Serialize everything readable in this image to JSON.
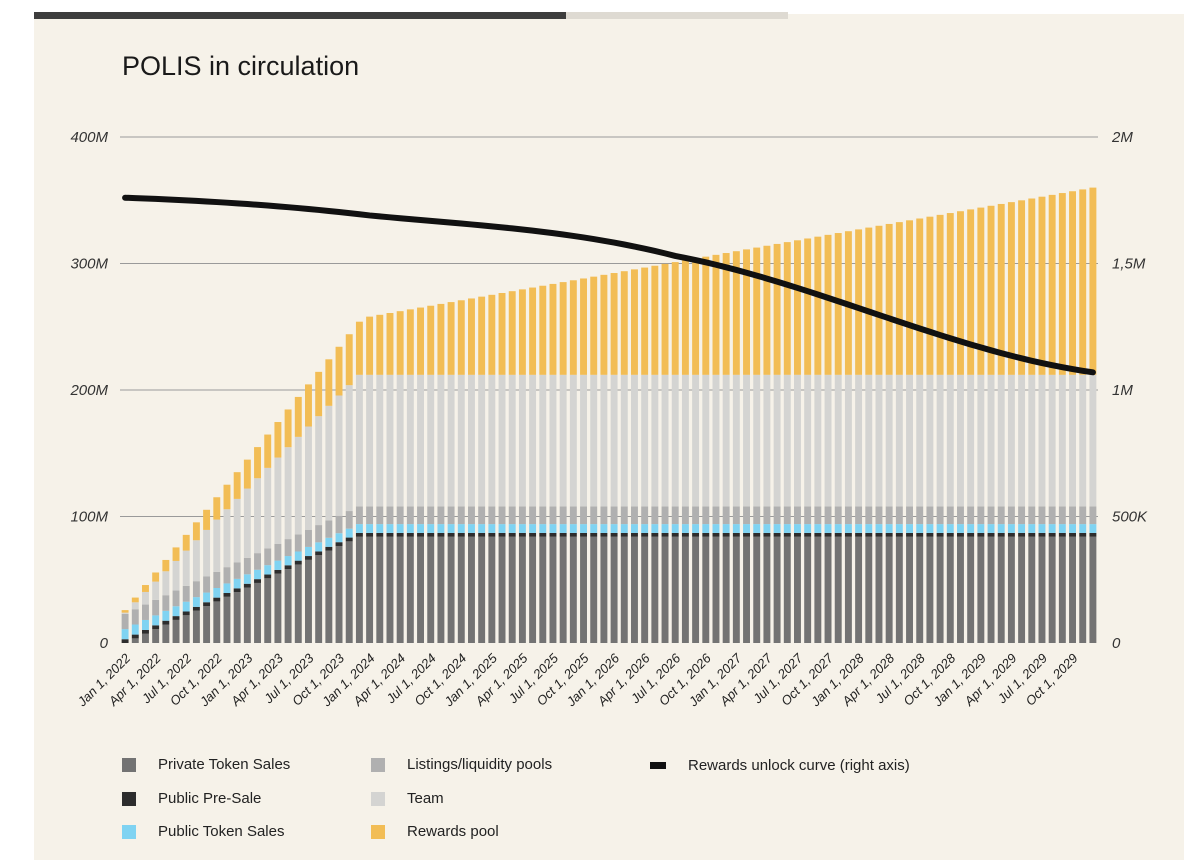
{
  "chart_data": {
    "type": "bar",
    "title": "POLIS in circulation",
    "xlabel": "",
    "ylabel": "",
    "stacked": true,
    "periods": 96,
    "period_unit": "month",
    "x_start": "Jan 1, 2022",
    "x_end": "Dec 1, 2029",
    "x_tick_labels": [
      "Jan 1, 2022",
      "Apr 1, 2022",
      "Jul 1, 2022",
      "Oct 1, 2022",
      "Jan 1, 2023",
      "Apr 1, 2023",
      "Jul 1, 2023",
      "Oct 1, 2023",
      "Jan 1, 2024",
      "Apr 1, 2024",
      "Jul 1, 2024",
      "Oct 1, 2024",
      "Jan 1, 2025",
      "Apr 1, 2025",
      "Jul 1, 2025",
      "Oct 1, 2025",
      "Jan 1, 2026",
      "Apr 1, 2026",
      "Jul 1, 2026",
      "Oct 1, 2026",
      "Jan 1, 2027",
      "Apr 1, 2027",
      "Jul 1, 2027",
      "Oct 1, 2027",
      "Jan 1, 2028",
      "Apr 1, 2028",
      "Jul 1, 2028",
      "Oct 1, 2028",
      "Jan 1, 2029",
      "Apr 1, 2029",
      "Jul 1, 2029",
      "Oct 1, 2029"
    ],
    "y_left": {
      "ylim": [
        0,
        400000000
      ],
      "ticks": [
        0,
        100000000,
        200000000,
        300000000,
        400000000
      ],
      "tick_labels": [
        "0",
        "100M",
        "200M",
        "300M",
        "400M"
      ]
    },
    "y_right": {
      "ylim": [
        0,
        2000000
      ],
      "ticks": [
        0,
        500000,
        1000000,
        1500000,
        2000000
      ],
      "tick_labels": [
        "0",
        "500K",
        "1M",
        "1,5M",
        "2M"
      ]
    },
    "grid": "horizontal",
    "series": [
      {
        "name": "Private Token Sales",
        "color": "#737373",
        "axis": "left",
        "segments": [
          {
            "from": 0,
            "to": 23,
            "start": 0,
            "end": 84000000
          },
          {
            "from": 24,
            "to": 95,
            "start": 84000000,
            "end": 84000000
          }
        ]
      },
      {
        "name": "Public Pre-Sale",
        "color": "#2d2d2d",
        "axis": "left",
        "segments": [
          {
            "from": 0,
            "to": 95,
            "start": 3000000,
            "end": 3000000
          }
        ]
      },
      {
        "name": "Public Token Sales",
        "color": "#7fd3f2",
        "axis": "left",
        "segments": [
          {
            "from": 0,
            "to": 23,
            "start": 8000000,
            "end": 7000000
          },
          {
            "from": 24,
            "to": 95,
            "start": 7000000,
            "end": 7000000
          }
        ]
      },
      {
        "name": "Listings/liquidity pools",
        "color": "#b0b0b0",
        "axis": "left",
        "segments": [
          {
            "from": 0,
            "to": 23,
            "start": 12000000,
            "end": 14000000
          },
          {
            "from": 24,
            "to": 95,
            "start": 14000000,
            "end": 14000000
          }
        ]
      },
      {
        "name": "Team",
        "color": "#d4d4d2",
        "axis": "left",
        "segments": [
          {
            "from": 0,
            "to": 23,
            "start": 1000000,
            "end": 104000000
          },
          {
            "from": 24,
            "to": 95,
            "start": 104000000,
            "end": 104000000
          }
        ]
      },
      {
        "name": "Rewards pool",
        "color": "#f2bd55",
        "axis": "left",
        "segments": [
          {
            "from": 0,
            "to": 23,
            "start": 2000000,
            "end": 42000000
          },
          {
            "from": 24,
            "to": 95,
            "start": 46000000,
            "end": 148000000
          }
        ]
      },
      {
        "name": "Rewards unlock curve (right axis)",
        "color": "#111111",
        "axis": "right",
        "type": "line",
        "points": [
          {
            "x": "Jan 1, 2022",
            "y": 1760000
          },
          {
            "x": "Jan 1, 2024",
            "y": 1690000
          },
          {
            "x": "Jul 1, 2026",
            "y": 1530000
          },
          {
            "x": "Dec 1, 2029",
            "y": 1070000
          }
        ]
      }
    ],
    "legend_position": "bottom"
  },
  "legend": {
    "items": [
      {
        "label": "Private Token Sales",
        "color": "#737373"
      },
      {
        "label": "Public Pre-Sale",
        "color": "#2d2d2d"
      },
      {
        "label": "Public Token Sales",
        "color": "#7fd3f2"
      },
      {
        "label": "Listings/liquidity pools",
        "color": "#b0b0b0"
      },
      {
        "label": "Team",
        "color": "#d4d4d2"
      },
      {
        "label": "Rewards pool",
        "color": "#f2bd55"
      },
      {
        "label": "Rewards unlock curve (right axis)",
        "color": "#111111"
      }
    ]
  }
}
